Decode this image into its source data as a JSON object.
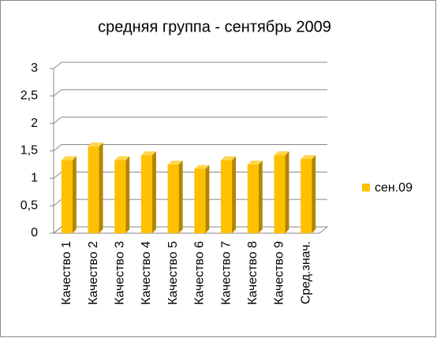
{
  "chart_data": {
    "type": "bar",
    "title": "средняя группа - сентябрь 2009",
    "categories": [
      "Качество 1",
      "Качество 2",
      "Качество 3",
      "Качество 4",
      "Качество 5",
      "Качество 6",
      "Качество 7",
      "Качество 8",
      "Качество 9",
      "Сред.знач."
    ],
    "series": [
      {
        "name": "сен.09",
        "color": "#ffc000",
        "values": [
          1.33,
          1.58,
          1.33,
          1.42,
          1.25,
          1.17,
          1.33,
          1.25,
          1.42,
          1.35
        ]
      }
    ],
    "ylim": [
      0,
      3
    ],
    "yticks": [
      0,
      {
        "value": 0.5,
        "label": "0,5"
      },
      1,
      {
        "value": 1.5,
        "label": "1,5"
      },
      2,
      {
        "value": 2.5,
        "label": "2,5"
      },
      3
    ],
    "grid": true,
    "legend": "right"
  }
}
